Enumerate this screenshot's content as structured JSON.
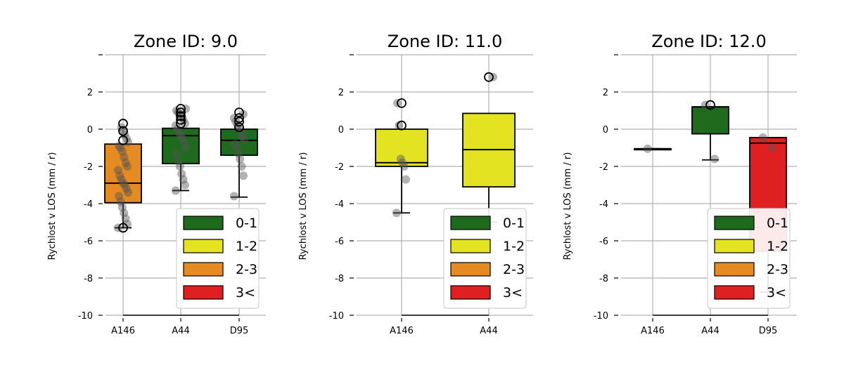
{
  "colors": {
    "0-1": "#1e6b1e",
    "1-2": "#e3e322",
    "2-3": "#e68a22",
    "3<": "#e02020",
    "grid": "#b0b0b0",
    "point": "#555555"
  },
  "chart_data": [
    {
      "type": "box",
      "title": "Zone ID: 9.0",
      "ylabel": "Rychlost v LOS (mm / r)",
      "categories": [
        "A146",
        "A44",
        "D95"
      ],
      "ylim": [
        -10,
        4
      ],
      "yticks": [
        "2",
        "0",
        "-2",
        "-4",
        "-6",
        "-8",
        "-10"
      ],
      "grid": true,
      "legend": {
        "position": "lower-right",
        "entries": [
          "0-1",
          "1-2",
          "2-3",
          "3<"
        ]
      },
      "boxes": [
        {
          "category": "A146",
          "class": "2-3",
          "q1": -3.95,
          "median": -2.9,
          "q3": -0.8,
          "whisker_low": -5.3,
          "whisker_high": -0.8,
          "points": [
            -5.3,
            -5.1,
            -4.8,
            -4.5,
            -4.2,
            -3.9,
            -3.6,
            -3.4,
            -3.2,
            -3.0,
            -2.9,
            -2.7,
            -2.5,
            -2.2,
            -2.0,
            -1.8,
            -1.5,
            -1.2,
            -1.0,
            -0.9,
            -0.7,
            -0.5,
            -0.3,
            -0.1,
            0.1
          ],
          "outliers": [
            0.3,
            -0.1,
            -0.6,
            -5.3
          ]
        },
        {
          "category": "A44",
          "class": "0-1",
          "q1": -1.85,
          "median": -0.35,
          "q3": 0.05,
          "whisker_low": -3.3,
          "whisker_high": 0.05,
          "points": [
            -3.3,
            -3.0,
            -2.7,
            -2.4,
            -2.0,
            -1.7,
            -1.3,
            -1.0,
            -0.7,
            -0.5,
            -0.3,
            -0.2,
            0.0,
            0.2,
            0.3,
            0.5,
            0.7,
            0.8,
            0.9,
            1.0,
            1.1
          ],
          "outliers": [
            1.1,
            0.9,
            0.7,
            0.5,
            0.3
          ]
        },
        {
          "category": "D95",
          "class": "0-1",
          "q1": -1.4,
          "median": -0.6,
          "q3": 0.0,
          "whisker_low": -3.65,
          "whisker_high": 0.0,
          "points": [
            -3.6,
            -2.5,
            -2.0,
            -1.6,
            -1.3,
            -1.0,
            -0.8,
            -0.6,
            -0.4,
            -0.2,
            0.0,
            0.2,
            0.4,
            0.6,
            0.8
          ],
          "outliers": [
            0.9,
            0.6,
            0.4,
            0.1
          ]
        }
      ]
    },
    {
      "type": "box",
      "title": "Zone ID: 11.0",
      "ylabel": "Rychlost v LOS (mm / r)",
      "categories": [
        "A146",
        "A44"
      ],
      "ylim": [
        -10,
        4
      ],
      "yticks": [
        "2",
        "0",
        "-2",
        "-4",
        "-6",
        "-8",
        "-10"
      ],
      "grid": true,
      "legend": {
        "position": "lower-right",
        "entries": [
          "0-1",
          "1-2",
          "2-3",
          "3<"
        ]
      },
      "boxes": [
        {
          "category": "A146",
          "class": "1-2",
          "q1": -2.0,
          "median": -1.8,
          "q3": 0.0,
          "whisker_low": -4.5,
          "whisker_high": 0.0,
          "points": [
            -4.5,
            -2.7,
            -2.0,
            -1.8,
            -1.6,
            0.2,
            1.4
          ],
          "outliers": [
            1.4,
            0.2
          ]
        },
        {
          "category": "A44",
          "class": "1-2",
          "q1": -3.1,
          "median": -1.1,
          "q3": 0.85,
          "whisker_low": -5.0,
          "whisker_high": 0.85,
          "points": [
            -5.0,
            2.8
          ],
          "outliers": [
            2.8
          ]
        }
      ]
    },
    {
      "type": "box",
      "title": "Zone ID: 12.0",
      "ylabel": "Rychlost v LOS (mm / r)",
      "categories": [
        "A146",
        "A44",
        "D95"
      ],
      "ylim": [
        -10,
        4
      ],
      "yticks": [
        "2",
        "0",
        "-2",
        "-4",
        "-6",
        "-8",
        "-10"
      ],
      "grid": true,
      "legend": {
        "position": "lower-right",
        "entries": [
          "0-1",
          "1-2",
          "2-3",
          "3<"
        ]
      },
      "boxes": [
        {
          "category": "A146",
          "class": "1-2",
          "q1": -1.05,
          "median": -1.05,
          "q3": -1.05,
          "whisker_low": -1.05,
          "whisker_high": -1.05,
          "points": [
            -1.05
          ],
          "outliers": []
        },
        {
          "category": "A44",
          "class": "0-1",
          "q1": -0.25,
          "median": 1.2,
          "q3": 1.2,
          "whisker_low": -1.65,
          "whisker_high": 1.2,
          "points": [
            1.3,
            -1.6
          ],
          "outliers": [
            1.3
          ]
        },
        {
          "category": "D95",
          "class": "3<",
          "q1": -6.55,
          "median": -0.75,
          "q3": -0.45,
          "whisker_low": -8.75,
          "whisker_high": -0.45,
          "points": [
            -0.45,
            -1.0,
            -8.4,
            -8.7
          ],
          "outliers": []
        }
      ]
    }
  ]
}
